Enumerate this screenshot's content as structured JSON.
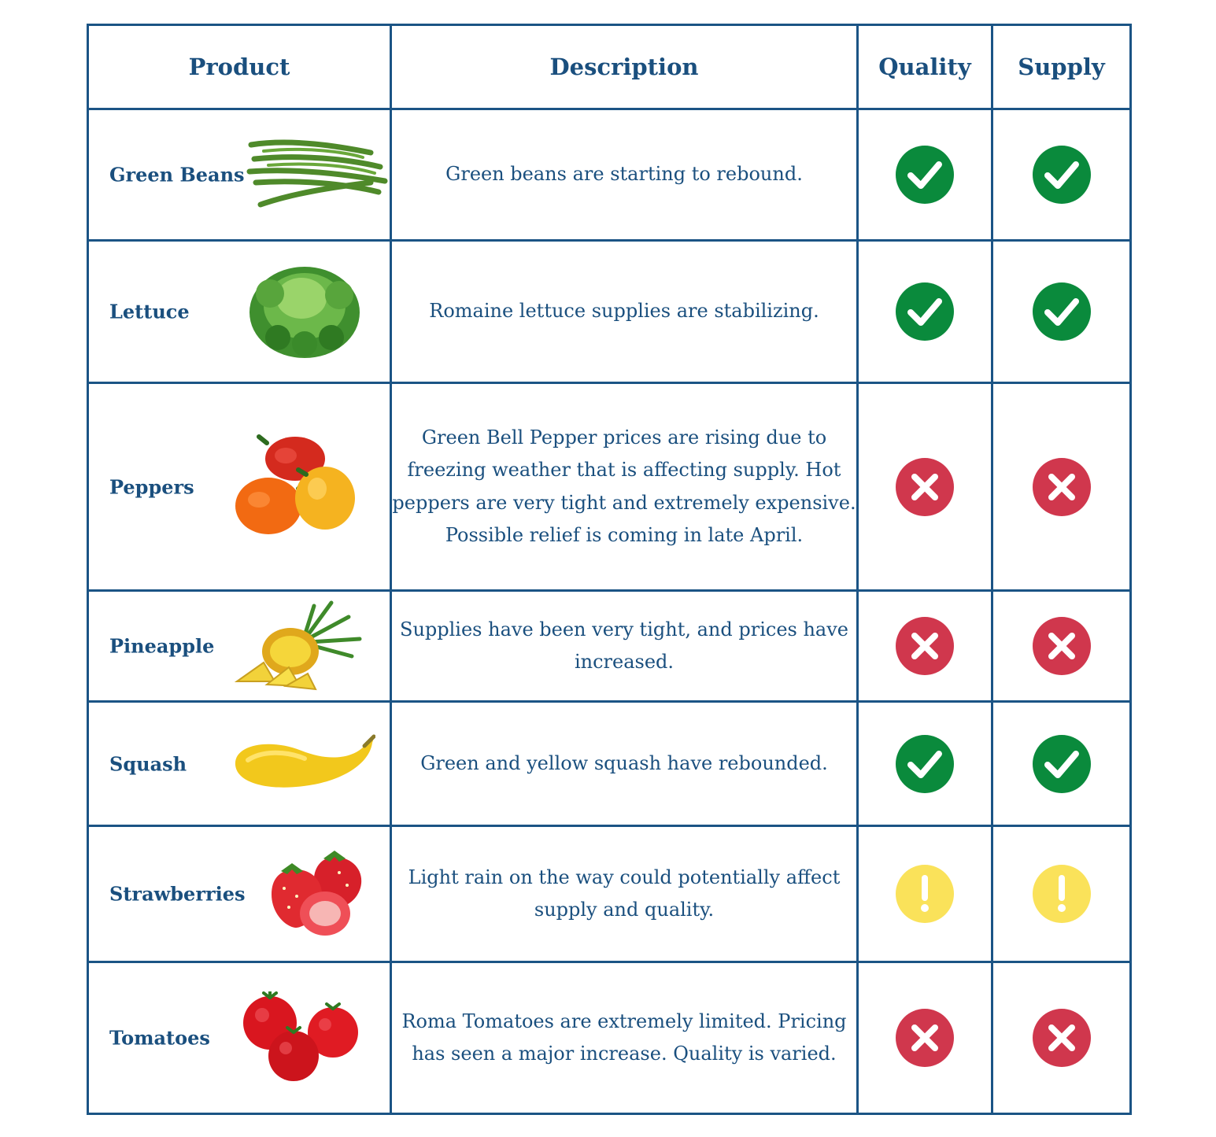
{
  "headers": {
    "product": "Product",
    "description": "Description",
    "quality": "Quality",
    "supply": "Supply"
  },
  "status_colors": {
    "good": "#0a8a3c",
    "bad": "#d0374d",
    "warning": "#fae25a"
  },
  "rows": [
    {
      "product": "Green Beans",
      "image": "green-beans",
      "description": "Green beans are starting to rebound.",
      "quality": "check-icon",
      "supply": "check-icon"
    },
    {
      "product": "Lettuce",
      "image": "lettuce",
      "description": "Romaine lettuce supplies are stabilizing.",
      "quality": "check-icon",
      "supply": "check-icon"
    },
    {
      "product": "Peppers",
      "image": "peppers",
      "description": "Green Bell Pepper prices are rising due to freezing weather that is affecting supply. Hot peppers are very tight and extremely expensive. Possible relief is coming in late April.",
      "quality": "x-icon",
      "supply": "x-icon"
    },
    {
      "product": "Pineapple",
      "image": "pineapple",
      "description": "Supplies have been very tight, and prices have increased.",
      "quality": "x-icon",
      "supply": "x-icon"
    },
    {
      "product": "Squash",
      "image": "squash",
      "description": "Green and yellow squash have rebounded.",
      "quality": "check-icon",
      "supply": "check-icon"
    },
    {
      "product": "Strawberries",
      "image": "strawberries",
      "description": "Light rain on the way could potentially affect supply and quality.",
      "quality": "exclamation-icon",
      "supply": "exclamation-icon"
    },
    {
      "product": "Tomatoes",
      "image": "tomatoes",
      "description": "Roma Tomatoes are extremely limited. Pricing has seen a major increase. Quality is varied.",
      "quality": "x-icon",
      "supply": "x-icon"
    }
  ]
}
